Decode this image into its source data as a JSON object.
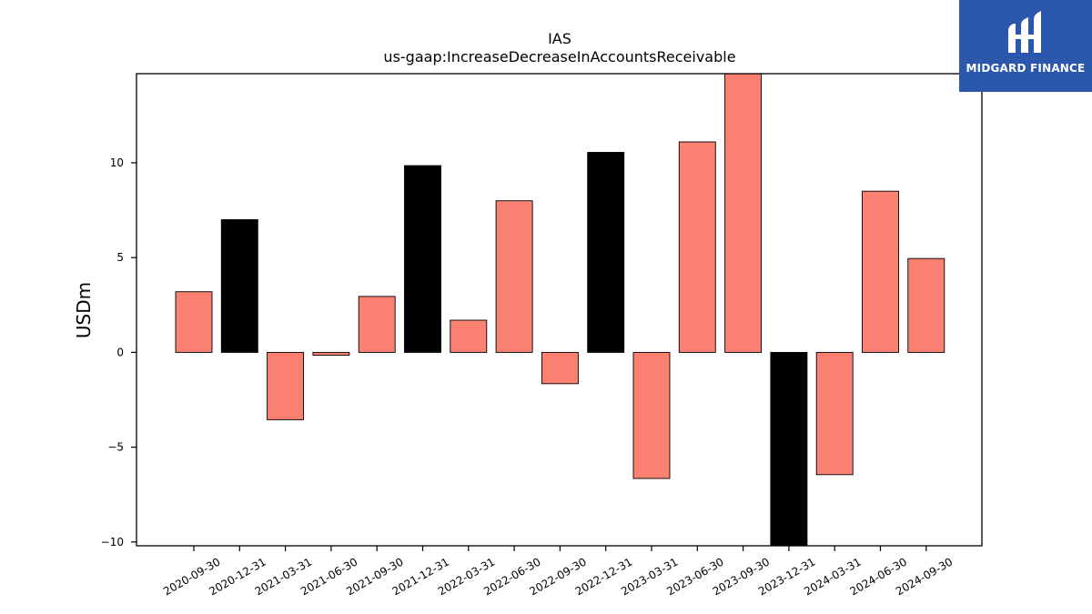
{
  "chart_data": {
    "type": "bar",
    "title": "IAS",
    "subtitle": "us-gaap:IncreaseDecreaseInAccountsReceivable",
    "xlabel": "",
    "ylabel": "USDm",
    "ylim": [
      -10.2,
      14.7
    ],
    "yticks": [
      -10,
      -5,
      0,
      5,
      10
    ],
    "ytick_labels": [
      "−10",
      "−5",
      "0",
      "5",
      "10"
    ],
    "grid": false,
    "categories": [
      "2020-09-30",
      "2020-12-31",
      "2021-03-31",
      "2021-06-30",
      "2021-09-30",
      "2021-12-31",
      "2022-03-31",
      "2022-06-30",
      "2022-09-30",
      "2022-12-31",
      "2023-03-31",
      "2023-06-30",
      "2023-09-30",
      "2023-12-31",
      "2024-03-31",
      "2024-06-30",
      "2024-09-30"
    ],
    "values": [
      3.2,
      7.0,
      -3.55,
      -0.15,
      2.95,
      9.85,
      1.7,
      8.0,
      -1.65,
      10.55,
      -6.65,
      11.1,
      14.7,
      -10.2,
      -6.45,
      8.5,
      4.95
    ],
    "colors": {
      "quarter": "#fa8072",
      "year_end": "#000000",
      "edge": "#000000"
    },
    "year_end_categories": [
      "2020-12-31",
      "2021-12-31",
      "2022-12-31",
      "2023-12-31"
    ]
  },
  "logo": {
    "text": "MIDGARD FINANCE",
    "background": "#2b57ad"
  }
}
